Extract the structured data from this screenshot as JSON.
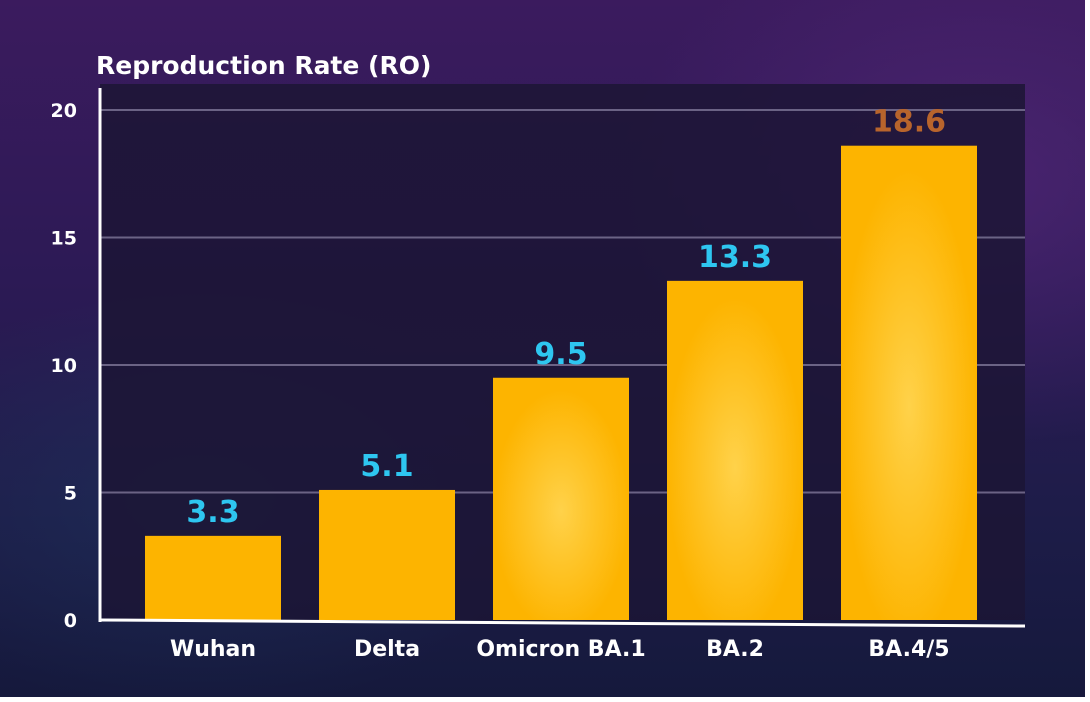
{
  "chart_data": {
    "type": "bar",
    "title": "Reproduction Rate (RO)",
    "xlabel": "",
    "ylabel": "",
    "categories": [
      "Wuhan",
      "Delta",
      "Omicron BA.1",
      "BA.2",
      "BA.4/5"
    ],
    "values": [
      3.3,
      5.1,
      9.5,
      13.3,
      18.6
    ],
    "data_labels": [
      "3.3",
      "5.1",
      "9.5",
      "13.3",
      "18.6"
    ],
    "ylim": [
      0,
      20
    ],
    "yticks": [
      0,
      5,
      10,
      15,
      20
    ],
    "ytick_labels": [
      "0",
      "5",
      "10",
      "15",
      "20"
    ],
    "grid": true,
    "legend": "none",
    "colors": {
      "bar": "#fdb400",
      "label": "#2ec6f0",
      "highlight_label": "#b8642c",
      "axis": "#ffffff",
      "grid": "#6b6385",
      "plot_panel": "#1c1535"
    },
    "highlight_index": 4
  }
}
